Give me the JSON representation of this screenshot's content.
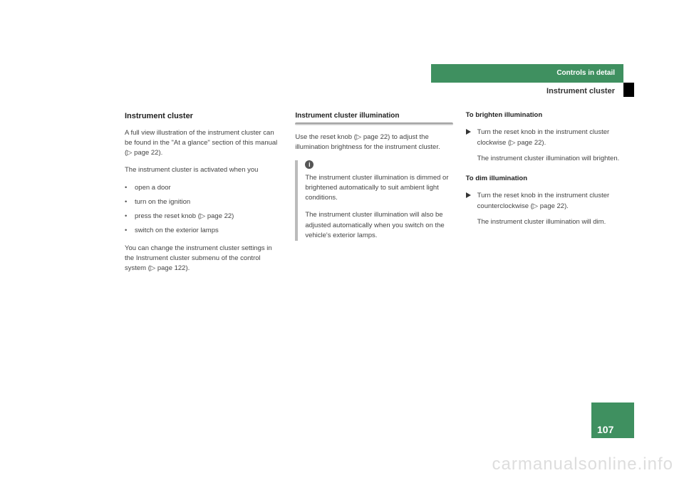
{
  "header": {
    "tab": "Controls in detail",
    "subtitle": "Instrument cluster"
  },
  "col1": {
    "title": "Instrument cluster",
    "p1a": "A full view illustration of the instrument cluster can be found in the \"At a glance\" section of this manual (",
    "p1b": " page 22).",
    "p2": "The instrument cluster is activated when you",
    "b1": "open a door",
    "b2": "turn on the ignition",
    "b3a": "press the reset knob (",
    "b3b": " page 22)",
    "b4": "switch on the exterior lamps",
    "p3a": "You can change the instrument cluster settings in the Instrument cluster submenu of the control system (",
    "p3b": " page 122)."
  },
  "col2": {
    "subtitle": "Instrument cluster illumination",
    "p1a": "Use the reset knob (",
    "p1b": " page 22) to adjust the illumination brightness for the instrument cluster.",
    "info_p1": "The instrument cluster illumination is dimmed or brightened automatically to suit ambient light conditions.",
    "info_p2": "The instrument cluster illumination will also be adjusted automatically when you switch on the vehicle's exterior lamps."
  },
  "col3": {
    "h1": "To brighten illumination",
    "a1a": "Turn the reset knob in the instrument cluster clockwise (",
    "a1b": " page 22).",
    "r1": "The instrument cluster illumination will brighten.",
    "h2": "To dim illumination",
    "a2a": "Turn the reset knob in the instrument cluster counterclockwise (",
    "a2b": " page 22).",
    "r2": "The instrument cluster illumination will dim."
  },
  "page_number": "107",
  "watermark": "carmanualsonline.info",
  "glyphs": {
    "xref": "▷",
    "info": "i"
  },
  "colors": {
    "green": "#3f9060",
    "text": "#444"
  }
}
